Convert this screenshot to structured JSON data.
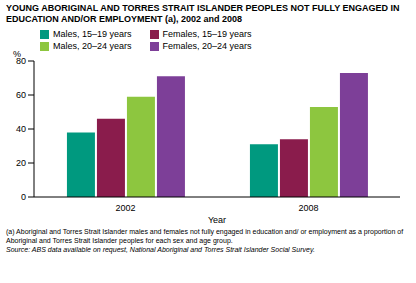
{
  "chart_data": {
    "type": "bar",
    "title": "YOUNG ABORIGINAL AND TORRES STRAIT ISLANDER PEOPLES NOT FULLY ENGAGED IN EDUCATION AND/OR EMPLOYMENT (a),  2002 and 2008",
    "x_label": "Year",
    "y_label": "%",
    "categories": [
      "2002",
      "2008"
    ],
    "series": [
      {
        "name": "Males, 15–19 years",
        "color": "#00997f",
        "values": [
          38,
          31
        ]
      },
      {
        "name": "Females, 15–19 years",
        "color": "#8a1c4c",
        "values": [
          46,
          34
        ]
      },
      {
        "name": "Males, 20–24 years",
        "color": "#8dc63f",
        "values": [
          59,
          53
        ]
      },
      {
        "name": "Females, 20–24 years",
        "color": "#7d3f98",
        "values": [
          71,
          73
        ]
      }
    ],
    "ylim": [
      0,
      80
    ],
    "yticks": [
      0,
      20,
      40,
      60,
      80
    ],
    "grid": false,
    "legend": "top-left",
    "footnote": "(a) Aboriginal and Torres Strait Islander males and females not fully engaged in education  and/ or employment as a proportion of Aboriginal and Torres Strait Islander peoples for each sex and age group.",
    "source": "Source: ABS data available on request, National Aboriginal and Torres Strait Islander Social Survey."
  }
}
